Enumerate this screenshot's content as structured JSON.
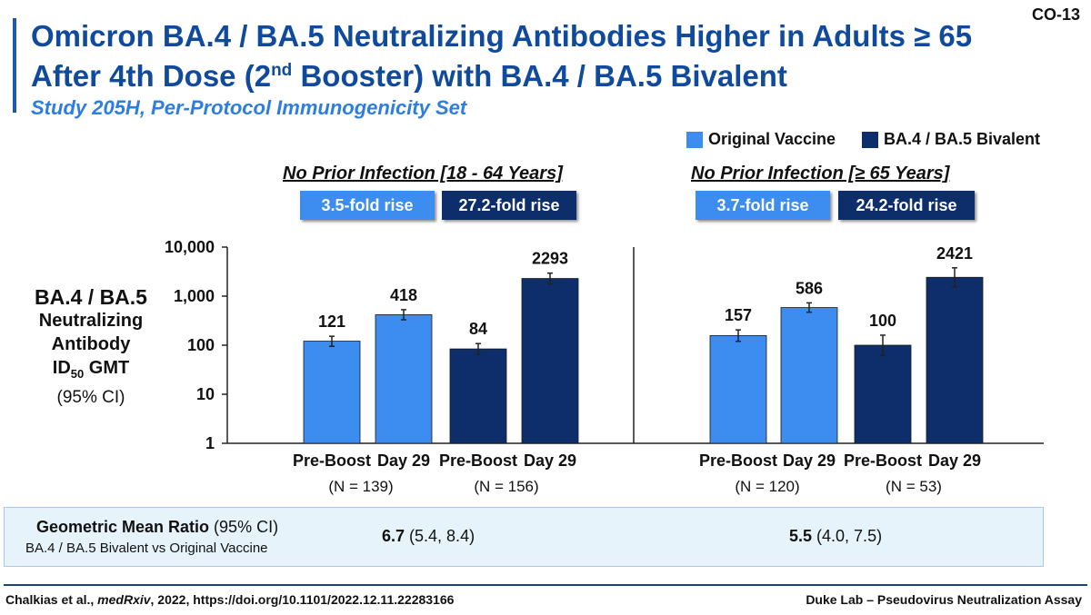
{
  "slide_id": "CO-13",
  "title": {
    "part1": "Omicron BA.4 / BA.5 Neutralizing Antibodies Higher in Adults ≥ 65 After 4th Dose (2",
    "sup": "nd",
    "part2": " Booster) with BA.4 / BA.5 Bivalent"
  },
  "subtitle": "Study 205H, Per-Protocol Immunogenicity Set",
  "legend": [
    {
      "label": "Original Vaccine",
      "color": "#3d8cf0"
    },
    {
      "label": "BA.4 / BA.5 Bivalent",
      "color": "#0d2d6b"
    }
  ],
  "colors": {
    "original": "#3d8cf0",
    "bivalent": "#0d2d6b",
    "accent": "#0f4a9c"
  },
  "y_axis_label": {
    "line1": "BA.4 / BA.5",
    "line2": "Neutralizing",
    "line3": "Antibody",
    "line4_main": "ID",
    "line4_sub": "50",
    "line4_rest": " GMT",
    "line5": "(95% CI)"
  },
  "panels": [
    {
      "title": "No Prior Infection [18 - 64 Years]",
      "fold_original": "3.5-fold rise",
      "fold_bivalent": "27.2-fold rise",
      "n_original": "(N = 139)",
      "n_bivalent": "(N = 156)"
    },
    {
      "title": "No Prior Infection [≥ 65 Years]",
      "fold_original": "3.7-fold rise",
      "fold_bivalent": "24.2-fold rise",
      "n_original": "(N = 120)",
      "n_bivalent": "(N = 53)"
    }
  ],
  "chart_data": {
    "type": "bar",
    "y_scale": "log",
    "ylim": [
      1,
      10000
    ],
    "yticks": [
      1,
      10,
      100,
      1000,
      10000
    ],
    "ytick_labels": [
      "1",
      "10",
      "100",
      "1,000",
      "10,000"
    ],
    "ylabel": "BA.4 / BA.5 Neutralizing Antibody ID50 GMT (95% CI)",
    "panels": [
      {
        "title": "No Prior Infection [18 - 64 Years]",
        "bars": [
          {
            "category": "Pre-Boost",
            "series": "Original Vaccine",
            "value": 121,
            "ci": [
              95,
              152
            ]
          },
          {
            "category": "Day 29",
            "series": "Original Vaccine",
            "value": 418,
            "ci": [
              330,
              530
            ]
          },
          {
            "category": "Pre-Boost",
            "series": "BA.4 / BA.5 Bivalent",
            "value": 84,
            "ci": [
              65,
              108
            ]
          },
          {
            "category": "Day 29",
            "series": "BA.4 / BA.5 Bivalent",
            "value": 2293,
            "ci": [
              1780,
              2950
            ]
          }
        ]
      },
      {
        "title": "No Prior Infection [≥ 65 Years]",
        "bars": [
          {
            "category": "Pre-Boost",
            "series": "Original Vaccine",
            "value": 157,
            "ci": [
              120,
              205
            ]
          },
          {
            "category": "Day 29",
            "series": "Original Vaccine",
            "value": 586,
            "ci": [
              470,
              730
            ]
          },
          {
            "category": "Pre-Boost",
            "series": "BA.4 / BA.5 Bivalent",
            "value": 100,
            "ci": [
              62,
              160
            ]
          },
          {
            "category": "Day 29",
            "series": "BA.4 / BA.5 Bivalent",
            "value": 2421,
            "ci": [
              1550,
              3780
            ]
          }
        ]
      }
    ]
  },
  "gmr": {
    "label_bold": "Geometric Mean Ratio",
    "label_rest": " (95% CI)",
    "sublabel": "BA.4 / BA.5 Bivalent vs Original Vaccine",
    "values": [
      {
        "value": "6.7",
        "ci": " (5.4, 8.4)"
      },
      {
        "value": "5.5",
        "ci": " (4.0, 7.5)"
      }
    ]
  },
  "footer": {
    "authors": "Chalkias et al., ",
    "journal": "medRxiv",
    "rest": ", 2022, https://doi.org/10.1101/2022.12.11.22283166",
    "right": "Duke Lab – Pseudovirus Neutralization Assay"
  }
}
